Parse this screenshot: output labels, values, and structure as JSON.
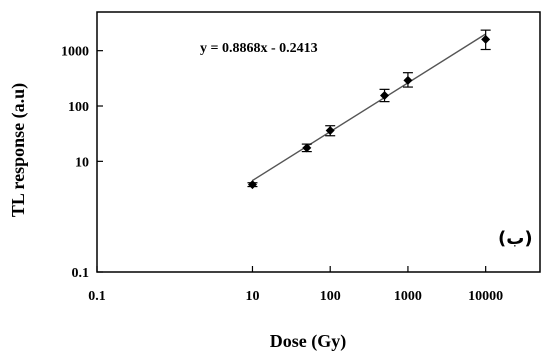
{
  "chart_data": {
    "type": "scatter",
    "xscale": "log",
    "yscale": "log",
    "xlim": [
      0.1,
      50000
    ],
    "ylim": [
      0.1,
      5000
    ],
    "xlabel": "Dose (Gy)",
    "ylabel": "TL response (a.u)",
    "xticks": [
      "0.1",
      "10",
      "100",
      "1000",
      "10000"
    ],
    "yticks": [
      "0.1",
      "10",
      "100",
      "1000"
    ],
    "equation": "y = 0.8868x - 0.2413",
    "panel_label": "(ب)",
    "grid": false,
    "marker_color": "#000000",
    "fit_line_color": "#555555",
    "points": [
      {
        "x": 10,
        "y": 3.8,
        "err_low": 0.3,
        "err_high": 0.3
      },
      {
        "x": 50,
        "y": 17.5,
        "err_low": 2.5,
        "err_high": 3
      },
      {
        "x": 100,
        "y": 36,
        "err_low": 7,
        "err_high": 8
      },
      {
        "x": 500,
        "y": 155,
        "err_low": 35,
        "err_high": 45
      },
      {
        "x": 1000,
        "y": 290,
        "err_low": 70,
        "err_high": 110
      },
      {
        "x": 10000,
        "y": 1600,
        "err_low": 550,
        "err_high": 750
      }
    ],
    "fit_line": {
      "x": [
        10,
        10000
      ],
      "y": [
        4.5,
        2000
      ]
    }
  }
}
